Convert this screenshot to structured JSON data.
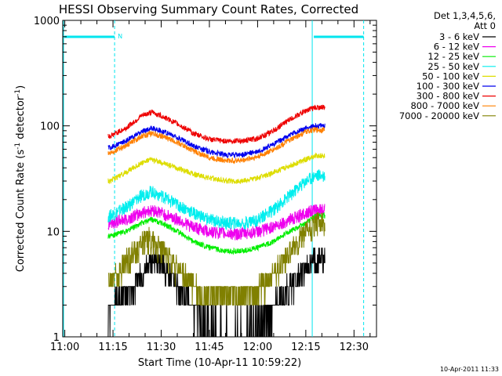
{
  "chart_data": {
    "type": "line",
    "title": "HESSI Observing Summary Count Rates, Corrected",
    "xlabel": "Start Time (10-Apr-11 10:59:22)",
    "ylabel_prefix": "Corrected Count Rate (s",
    "ylabel_sup1": "-1",
    "ylabel_mid": " detector",
    "ylabel_sup2": "-1",
    "ylabel_suffix": ")",
    "y_scale": "log",
    "ylim": [
      1,
      1000
    ],
    "xlim": [
      "10:59:22",
      "12:37:00"
    ],
    "x_ticks": [
      "11:00",
      "11:15",
      "11:30",
      "11:45",
      "12:00",
      "12:15",
      "12:30"
    ],
    "y_ticks": [
      "1",
      "10",
      "100",
      "1000"
    ],
    "timestamp": "10-Apr-2011 11:33",
    "legend_header": [
      "Det 1,3,4,5,6,",
      "Att 0"
    ],
    "legend_position": "right",
    "data_start": "11:13:30",
    "data_end": "12:21:00",
    "annotations": [
      {
        "type": "attenuator-bar",
        "color": "#00e5ee",
        "label": "N",
        "x_start": "10:59:22",
        "x_end": "11:15:30",
        "level": 800
      },
      {
        "type": "attenuator-bar",
        "color": "#00e5ee",
        "label": "",
        "x_start": "12:17:00",
        "x_end": "12:33:00",
        "level": 800
      }
    ],
    "vertical_markers": [
      {
        "time": "10:59:22",
        "style": "solid",
        "color": "#00e5ee"
      },
      {
        "time": "11:15:30",
        "style": "dashed",
        "color": "#00e5ee"
      },
      {
        "time": "12:17:00",
        "style": "solid",
        "color": "#00e5ee"
      },
      {
        "time": "12:33:00",
        "style": "dashed",
        "color": "#00e5ee"
      }
    ],
    "series_x": [
      "11:14",
      "11:19",
      "11:24",
      "11:27",
      "11:30",
      "11:35",
      "11:40",
      "11:45",
      "11:50",
      "11:55",
      "12:00",
      "12:05",
      "12:10",
      "12:15",
      "12:18",
      "12:21"
    ],
    "series": [
      {
        "name": "3 - 6 keV",
        "color": "#000000",
        "values": [
          1.8,
          2.5,
          3.8,
          5.5,
          5.0,
          3.0,
          1.8,
          1.3,
          1.2,
          1.2,
          1.4,
          2.0,
          3.0,
          4.5,
          5.5,
          5.5
        ]
      },
      {
        "name": "6 - 12 keV",
        "color": "#ee00ee",
        "values": [
          12,
          13,
          15,
          16,
          15,
          13,
          11,
          10,
          9.5,
          9.5,
          10,
          11,
          13,
          15,
          16,
          16
        ]
      },
      {
        "name": "12 - 25 keV",
        "color": "#00ee00",
        "values": [
          9,
          10,
          12,
          13,
          12,
          10,
          8,
          7,
          6.5,
          6.5,
          7,
          8,
          10,
          12,
          14,
          14
        ]
      },
      {
        "name": "25 - 50 keV",
        "color": "#00eeee",
        "values": [
          14,
          17,
          22,
          24,
          22,
          18,
          15,
          13,
          12,
          12,
          13,
          16,
          22,
          30,
          34,
          34
        ]
      },
      {
        "name": "50 - 100 keV",
        "color": "#dddd00",
        "values": [
          30,
          36,
          45,
          48,
          45,
          40,
          35,
          32,
          30,
          30,
          32,
          36,
          42,
          48,
          52,
          52
        ]
      },
      {
        "name": "100 - 300 keV",
        "color": "#0000ee",
        "values": [
          62,
          72,
          88,
          95,
          90,
          78,
          65,
          57,
          53,
          53,
          57,
          67,
          82,
          95,
          100,
          100
        ]
      },
      {
        "name": "300 - 800 keV",
        "color": "#ee0000",
        "values": [
          80,
          95,
          125,
          135,
          125,
          105,
          85,
          75,
          72,
          72,
          76,
          90,
          115,
          140,
          150,
          150
        ]
      },
      {
        "name": "800 - 7000 keV",
        "color": "#ff8000",
        "values": [
          55,
          65,
          80,
          85,
          80,
          70,
          58,
          50,
          47,
          47,
          51,
          60,
          73,
          88,
          92,
          92
        ]
      },
      {
        "name": "7000 - 20000 keV",
        "color": "#808000",
        "values": [
          3.5,
          5,
          8,
          8.5,
          7,
          4.5,
          3,
          2.5,
          2.5,
          2.5,
          2.8,
          4,
          6.5,
          10,
          12,
          12
        ]
      }
    ]
  }
}
